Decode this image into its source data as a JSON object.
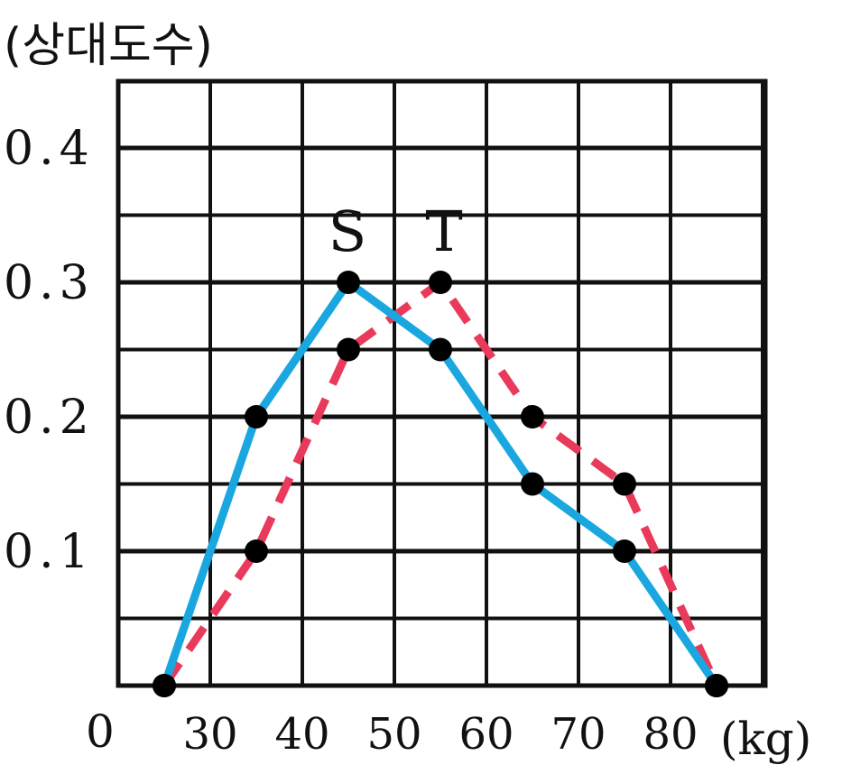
{
  "chart_data": {
    "type": "line",
    "ylabel": "(상대도수)",
    "xlabel": "(kg)",
    "origin_label": "0",
    "x_ticks": [
      30,
      40,
      50,
      60,
      70,
      80
    ],
    "y_ticks": [
      0.1,
      0.2,
      0.3,
      0.4
    ],
    "y_tick_labels": [
      "0.1",
      "0.2",
      "0.3",
      "0.4"
    ],
    "xlim": [
      20,
      85
    ],
    "ylim": [
      0,
      0.45
    ],
    "grid": true,
    "series": [
      {
        "name": "S",
        "color": "#1aa7e0",
        "style": "solid",
        "x": [
          25,
          35,
          45,
          55,
          65,
          75,
          85
        ],
        "y": [
          0,
          0.2,
          0.3,
          0.25,
          0.15,
          0.1,
          0
        ]
      },
      {
        "name": "T",
        "color": "#ea3a5b",
        "style": "dashed",
        "x": [
          25,
          35,
          45,
          55,
          65,
          75,
          85
        ],
        "y": [
          0,
          0.1,
          0.25,
          0.3,
          0.2,
          0.15,
          0
        ]
      }
    ]
  }
}
